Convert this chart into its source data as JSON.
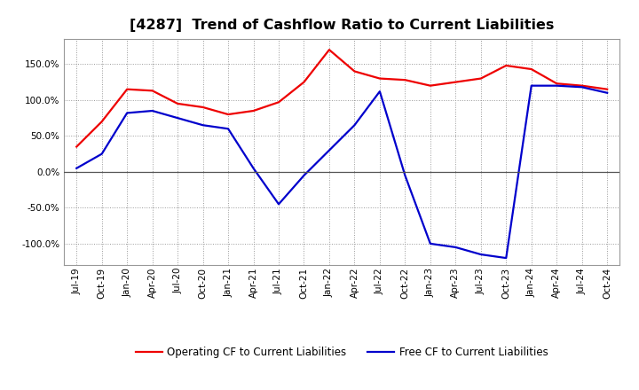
{
  "title": "[4287]  Trend of Cashflow Ratio to Current Liabilities",
  "x_labels": [
    "Jul-19",
    "Oct-19",
    "Jan-20",
    "Apr-20",
    "Jul-20",
    "Oct-20",
    "Jan-21",
    "Apr-21",
    "Jul-21",
    "Oct-21",
    "Jan-22",
    "Apr-22",
    "Jul-22",
    "Oct-22",
    "Jan-23",
    "Apr-23",
    "Jul-23",
    "Oct-23",
    "Jan-24",
    "Apr-24",
    "Jul-24",
    "Oct-24"
  ],
  "operating_cf": [
    35,
    70,
    115,
    113,
    95,
    90,
    80,
    85,
    97,
    125,
    170,
    140,
    130,
    128,
    120,
    125,
    130,
    148,
    143,
    123,
    120,
    115
  ],
  "free_cf": [
    5,
    25,
    82,
    85,
    75,
    65,
    60,
    5,
    -45,
    -5,
    30,
    65,
    112,
    -5,
    -100,
    -105,
    -115,
    -120,
    120,
    120,
    118,
    110
  ],
  "ylim": [
    -130,
    185
  ],
  "yticks": [
    -100,
    -50,
    0,
    50,
    100,
    150
  ],
  "operating_color": "#EE0000",
  "free_color": "#0000CC",
  "background_color": "#FFFFFF",
  "grid_color": "#999999",
  "zero_line_color": "#555555",
  "legend_op": "Operating CF to Current Liabilities",
  "legend_free": "Free CF to Current Liabilities",
  "title_fontsize": 11.5,
  "axis_fontsize": 7.5,
  "legend_fontsize": 8.5
}
